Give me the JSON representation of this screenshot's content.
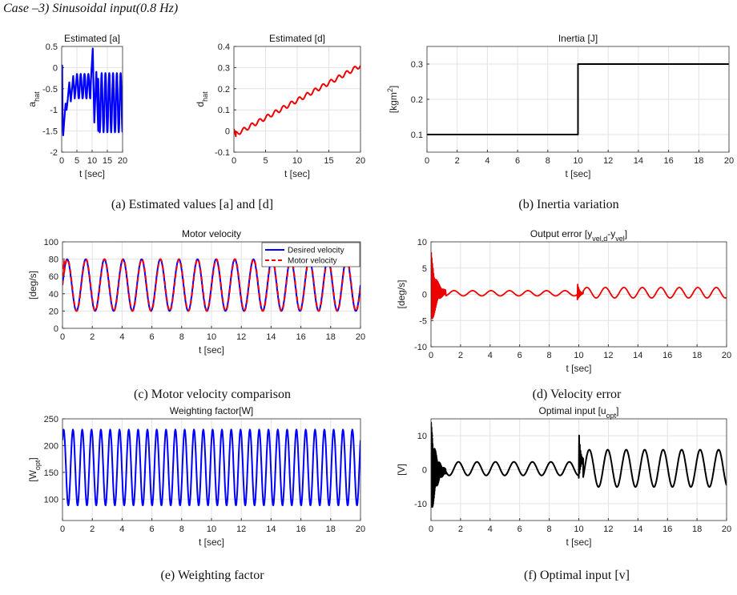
{
  "header": {
    "title": "Case –3) Sinusoidal input(0.8 Hz)"
  },
  "captions": {
    "a": "(a) Estimated values [a] and [d]",
    "b": "(b) Inertia variation",
    "c": "(c) Motor velocity comparison",
    "d": "(d) Velocity error",
    "e": "(e) Weighting factor",
    "f": "(f) Optimal input [v]"
  },
  "chart_data": [
    {
      "id": "a1",
      "type": "line",
      "title": "Estimated [a]",
      "xlabel": "t [sec]",
      "ylabel": "a",
      "ylabel_sub": "hat",
      "xlim": [
        0,
        20
      ],
      "ylim": [
        -2,
        0.5
      ],
      "xticks": [
        0,
        5,
        10,
        15,
        20
      ],
      "yticks": [
        -2,
        -1.5,
        -1,
        -0.5,
        0,
        0.5
      ],
      "grid": true,
      "series": [
        {
          "name": "a_hat",
          "color": "#0000ff",
          "width": 2.2,
          "segments": [
            {
              "points": [
                [
                  0,
                  0
                ],
                [
                  0.15,
                  0.05
                ],
                [
                  0.3,
                  -1.2
                ],
                [
                  0.5,
                  -1.6
                ],
                [
                  0.8,
                  -1.3
                ],
                [
                  1.3,
                  -0.85
                ],
                [
                  1.6,
                  -1.0
                ],
                [
                  2.0,
                  -0.75
                ],
                [
                  2.5,
                  -0.35
                ],
                [
                  3.0,
                  -0.8
                ],
                [
                  3.8,
                  -0.2
                ],
                [
                  4.3,
                  -0.73
                ],
                [
                  5.0,
                  -0.15
                ]
              ]
            },
            {
              "sine": {
                "t0": 5.0,
                "t1": 9.4,
                "offset": -0.44,
                "amp": 0.29,
                "freq": 0.8,
                "phase": 1.5708
              }
            },
            {
              "points": [
                [
                  9.6,
                  -0.3
                ],
                [
                  10.2,
                  0.45
                ],
                [
                  10.7,
                  -1.3
                ],
                [
                  11.4,
                  -0.1
                ],
                [
                  12.0,
                  -1.5
                ]
              ]
            },
            {
              "sine": {
                "t0": 12.0,
                "t1": 20,
                "offset": -0.83,
                "amp": 0.7,
                "freq": 0.8,
                "phase": -1.5708
              }
            }
          ]
        }
      ]
    },
    {
      "id": "a2",
      "type": "line",
      "title": "Estimated [d]",
      "xlabel": "t [sec]",
      "ylabel": "d",
      "ylabel_sub": "hat",
      "xlim": [
        0,
        20
      ],
      "ylim": [
        -0.1,
        0.4
      ],
      "xticks": [
        0,
        5,
        10,
        15,
        20
      ],
      "yticks": [
        -0.1,
        0,
        0.1,
        0.2,
        0.3,
        0.4
      ],
      "grid": true,
      "series": [
        {
          "name": "d_hat",
          "color": "#ee0000",
          "width": 2,
          "segments": [
            {
              "points": [
                [
                  0,
                  0.01
                ],
                [
                  0.3,
                  -0.025
                ]
              ]
            },
            {
              "sine": {
                "t0": 0.3,
                "t1": 20,
                "offset": -0.02,
                "slope": 0.0165,
                "amp": 0.01,
                "freq": 0.8,
                "phase": 0
              }
            }
          ]
        }
      ]
    },
    {
      "id": "b",
      "type": "line",
      "title": "Inertia [J]",
      "xlabel": "t [sec]",
      "ylabel": "[kgm",
      "ylabel_sup": "2",
      "ylabel_end": "]",
      "xlim": [
        0,
        20
      ],
      "ylim": [
        0.05,
        0.35
      ],
      "xticks": [
        0,
        2,
        4,
        6,
        8,
        10,
        12,
        14,
        16,
        18,
        20
      ],
      "yticks": [
        0.1,
        0.2,
        0.3
      ],
      "grid": true,
      "series": [
        {
          "name": "J",
          "color": "#000000",
          "width": 2,
          "segments": [
            {
              "points": [
                [
                  0,
                  0.1
                ],
                [
                  10,
                  0.1
                ],
                [
                  10,
                  0.3
                ],
                [
                  20,
                  0.3
                ]
              ]
            }
          ]
        }
      ]
    },
    {
      "id": "c",
      "type": "line",
      "title": "Motor velocity",
      "xlabel": "t [sec]",
      "ylabel": "[deg/s]",
      "xlim": [
        0,
        20
      ],
      "ylim": [
        0,
        100
      ],
      "xticks": [
        0,
        2,
        4,
        6,
        8,
        10,
        12,
        14,
        16,
        18,
        20
      ],
      "yticks": [
        0,
        20,
        40,
        60,
        80,
        100
      ],
      "grid": true,
      "legend": {
        "placement": "top-right",
        "entries": [
          "Desired velocity",
          "Motor velocity"
        ]
      },
      "series": [
        {
          "name": "Desired velocity",
          "color": "#0000ff",
          "width": 2,
          "segments": [
            {
              "sine": {
                "t0": 0,
                "t1": 20,
                "offset": 50,
                "amp": 30,
                "freq": 0.8,
                "phase": 0
              }
            }
          ]
        },
        {
          "name": "Motor velocity",
          "color": "#ff0000",
          "width": 2,
          "dash": "6,4",
          "segments": [
            {
              "points": [
                [
                  0,
                  50
                ],
                [
                  0.1,
                  78
                ]
              ]
            },
            {
              "sine": {
                "t0": 0.1,
                "t1": 20,
                "offset": 50,
                "amp": 30,
                "freq": 0.8,
                "phase": -0.08
              }
            }
          ]
        }
      ]
    },
    {
      "id": "d",
      "type": "line",
      "title": "Output error [y",
      "title_sub": "vel,d",
      "title_mid": "-y",
      "title_sub2": "vel",
      "title_end": "]",
      "xlabel": "t [sec]",
      "ylabel": "[deg/s]",
      "xlim": [
        0,
        20
      ],
      "ylim": [
        -10,
        10
      ],
      "xticks": [
        0,
        2,
        4,
        6,
        8,
        10,
        12,
        14,
        16,
        18,
        20
      ],
      "yticks": [
        -10,
        -5,
        0,
        5,
        10
      ],
      "grid": true,
      "series": [
        {
          "name": "error",
          "color": "#ee0000",
          "width": 1.8,
          "segments": [
            {
              "burst": {
                "t0": 0,
                "t1": 1.0,
                "center": 0.4,
                "amp": 8,
                "freq": 25
              }
            },
            {
              "sine": {
                "t0": 1.0,
                "t1": 9.9,
                "offset": 0.2,
                "amp": 0.5,
                "freq": 0.8,
                "phase": 0
              }
            },
            {
              "burst": {
                "t0": 9.9,
                "t1": 10.3,
                "center": 0.2,
                "amp": 2,
                "freq": 20
              }
            },
            {
              "sine": {
                "t0": 10.3,
                "t1": 20,
                "offset": 0.3,
                "amp": 1.0,
                "freq": 0.8,
                "phase": -1.2
              }
            }
          ]
        }
      ]
    },
    {
      "id": "e",
      "type": "line",
      "title": "Weighting factor[W]",
      "xlabel": "t [sec]",
      "ylabel": "[W",
      "ylabel_sub": "opt",
      "ylabel_end": "]",
      "xlim": [
        0,
        20
      ],
      "ylim": [
        60,
        250
      ],
      "xticks": [
        0,
        2,
        4,
        6,
        8,
        10,
        12,
        14,
        16,
        18,
        20
      ],
      "yticks": [
        100,
        150,
        200,
        250
      ],
      "grid": true,
      "series": [
        {
          "name": "W",
          "color": "#0000ff",
          "width": 2,
          "segments": [
            {
              "sine": {
                "t0": 0,
                "t1": 20,
                "offset": 159,
                "amp": 71,
                "freq": 1.6,
                "phase": 0.8
              }
            }
          ]
        }
      ]
    },
    {
      "id": "f",
      "type": "line",
      "title": "Optimal input [u",
      "title_sub": "opt",
      "title_end": "]",
      "xlabel": "t [sec]",
      "ylabel": "[V]",
      "xlim": [
        0,
        20
      ],
      "ylim": [
        -15,
        15
      ],
      "xticks": [
        0,
        2,
        4,
        6,
        8,
        10,
        12,
        14,
        16,
        18,
        20
      ],
      "yticks": [
        -10,
        0,
        10
      ],
      "grid": true,
      "series": [
        {
          "name": "u_opt",
          "color": "#000000",
          "width": 2,
          "segments": [
            {
              "burst": {
                "t0": 0,
                "t1": 1.0,
                "center": -0.5,
                "amp": 15,
                "freq": 40
              }
            },
            {
              "sine": {
                "t0": 1.0,
                "t1": 10.0,
                "offset": 0.3,
                "amp": 2,
                "freq": 0.8,
                "phase": -1.5
              }
            },
            {
              "burst": {
                "t0": 10.0,
                "t1": 10.3,
                "center": 3,
                "amp": 9,
                "freq": 20
              }
            },
            {
              "sine": {
                "t0": 10.3,
                "t1": 20,
                "offset": 0.4,
                "amp": 5.5,
                "freq": 0.8,
                "phase": -2.0
              }
            }
          ]
        }
      ]
    }
  ]
}
